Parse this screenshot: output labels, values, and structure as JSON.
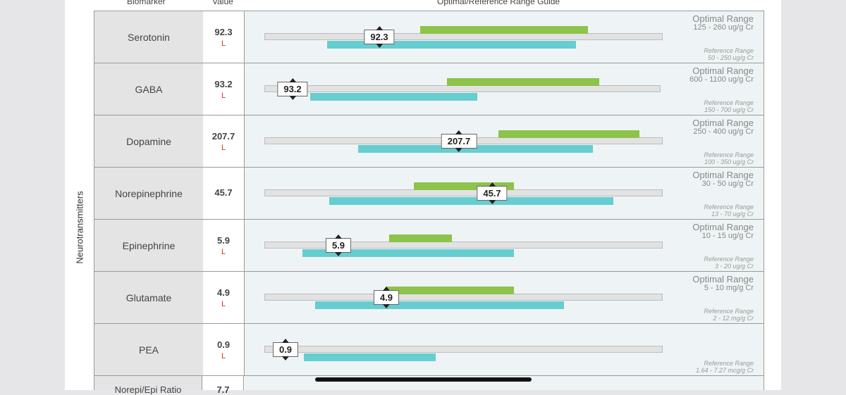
{
  "header": {
    "col_biomarker": "Biomarker",
    "col_value": "Value",
    "col_guide": "Optimal/Reference Range Guide"
  },
  "section_label": "Neurotransmitters",
  "colors": {
    "optimal": "#8dc34a",
    "reference": "#66cdd0",
    "flag_low": "#d93025"
  },
  "rows": [
    {
      "name": "Serotonin",
      "value": "92.3",
      "flag": "L",
      "optimal_label": "Optimal Range",
      "optimal_range": "125 - 260 ug/g Cr",
      "reference_label": "Reference Range",
      "reference_range": "50 - 250 ug/g Cr"
    },
    {
      "name": "GABA",
      "value": "93.2",
      "flag": "L",
      "optimal_label": "Optimal Range",
      "optimal_range": "600 - 1100 ug/g Cr",
      "reference_label": "Reference Range",
      "reference_range": "150 - 700 ug/g Cr"
    },
    {
      "name": "Dopamine",
      "value": "207.7",
      "flag": "L",
      "optimal_label": "Optimal Range",
      "optimal_range": "250 - 400 ug/g Cr",
      "reference_label": "Reference Range",
      "reference_range": "100 - 350 ug/g Cr"
    },
    {
      "name": "Norepinephrine",
      "value": "45.7",
      "flag": "",
      "optimal_label": "Optimal Range",
      "optimal_range": "30 - 50 ug/g Cr",
      "reference_label": "Reference Range",
      "reference_range": "13 - 70 ug/g Cr"
    },
    {
      "name": "Epinephrine",
      "value": "5.9",
      "flag": "L",
      "optimal_label": "Optimal Range",
      "optimal_range": "10 - 15 ug/g Cr",
      "reference_label": "Reference Range",
      "reference_range": "3 - 20 ug/g Cr"
    },
    {
      "name": "Glutamate",
      "value": "4.9",
      "flag": "L",
      "optimal_label": "Optimal Range",
      "optimal_range": "5 - 10 mg/g Cr",
      "reference_label": "Reference Range",
      "reference_range": "2 - 12 mg/g Cr"
    },
    {
      "name": "PEA",
      "value": "0.9",
      "flag": "L",
      "optimal_label": "",
      "optimal_range": "",
      "reference_label": "Reference Range",
      "reference_range": "1.64 - 7.27 mcg/g Cr"
    }
  ],
  "partial_row": {
    "name": "Norepi/Epi Ratio",
    "value": "7.7"
  }
}
